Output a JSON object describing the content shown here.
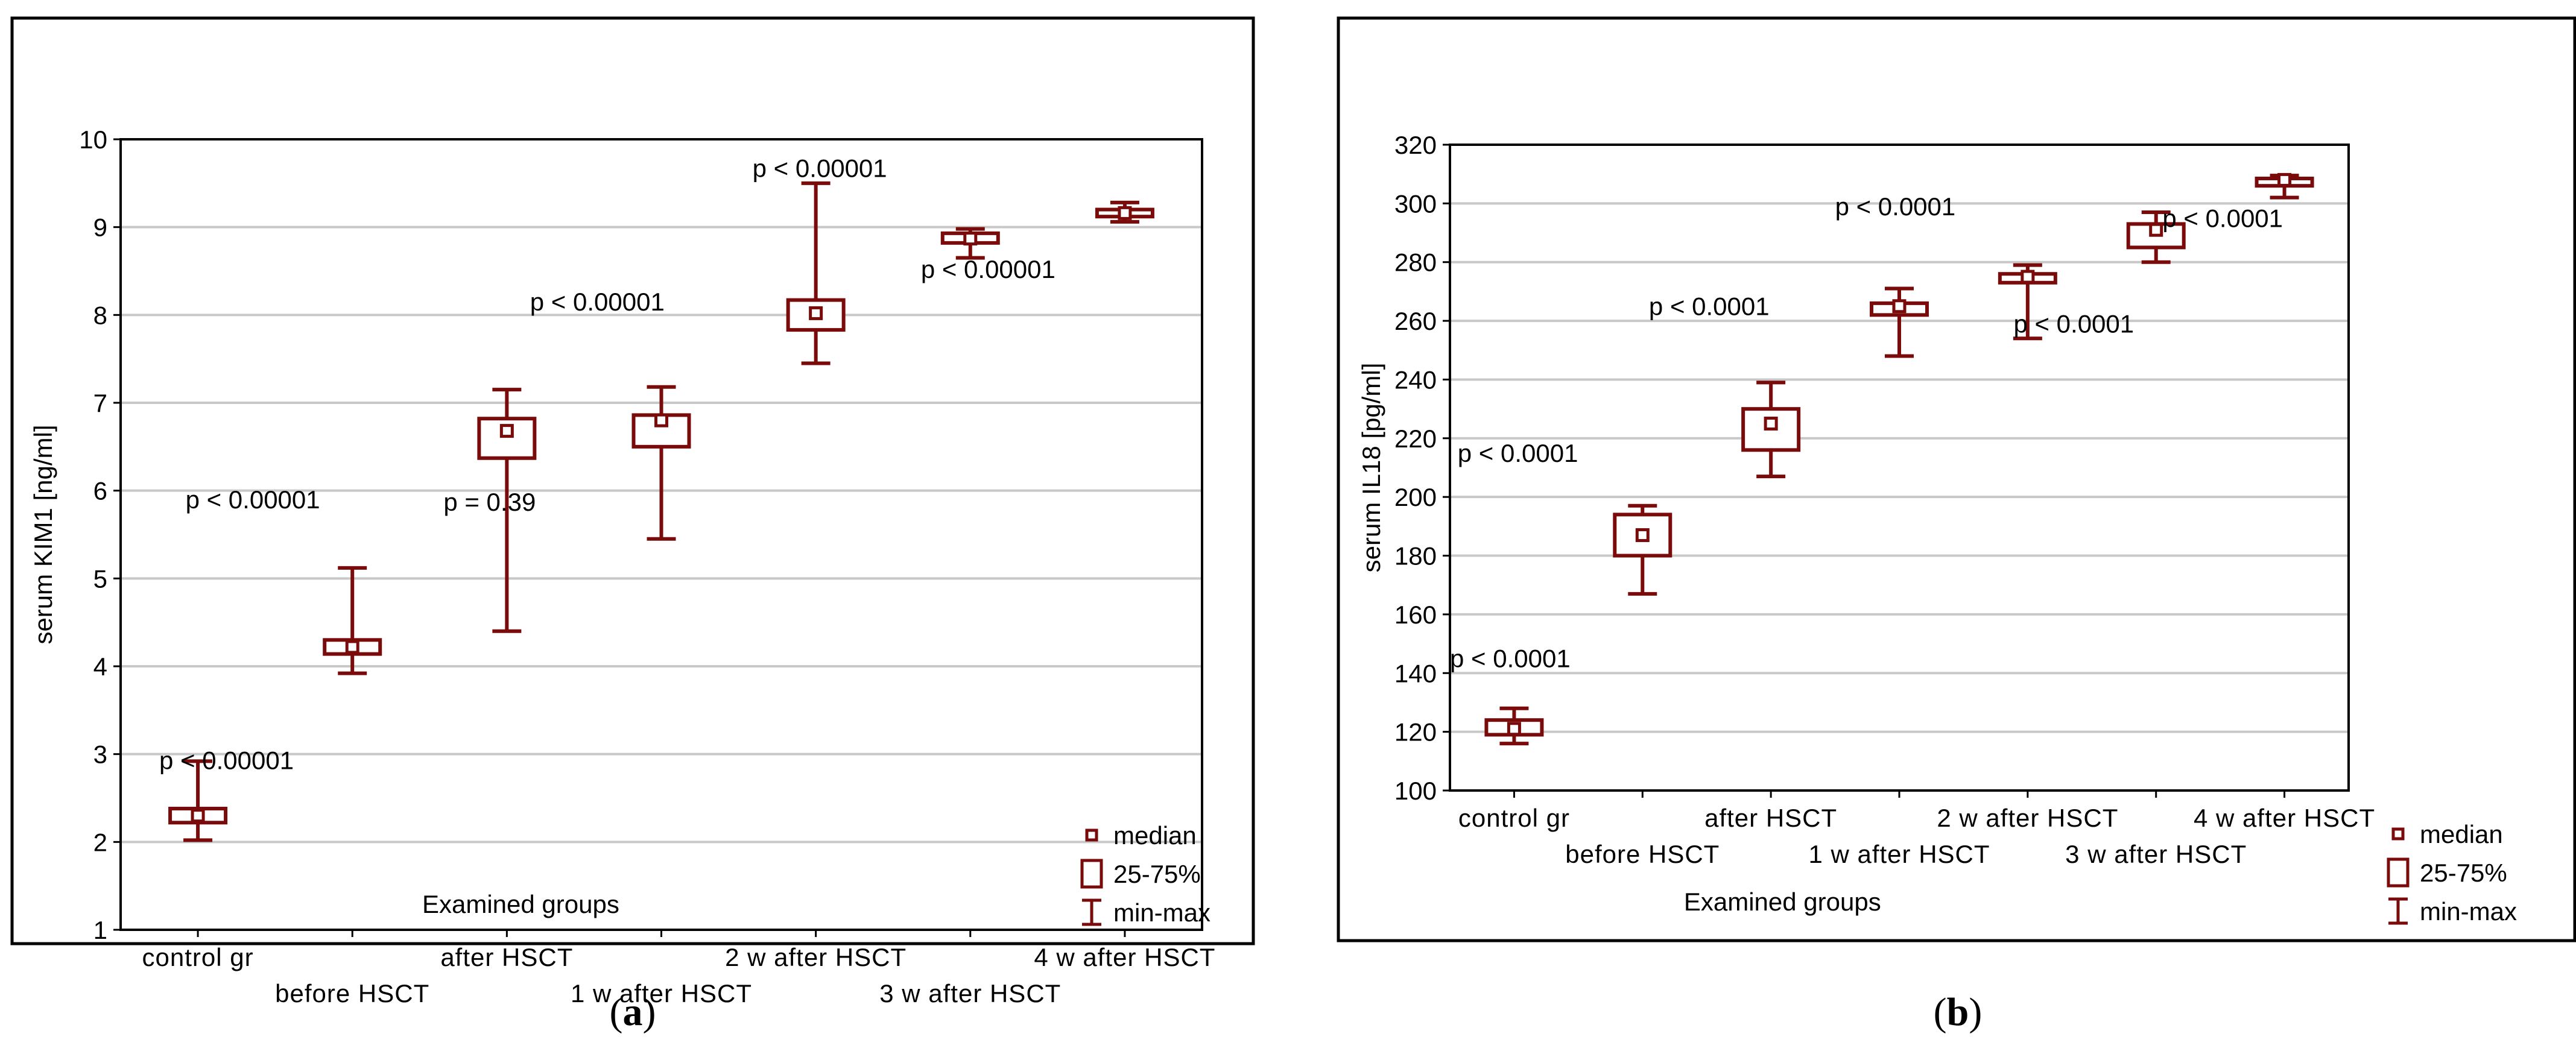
{
  "series_color": "#7a0b0b",
  "legend": {
    "median": "median",
    "box": "25-75%",
    "whisker": "min-max"
  },
  "panels": [
    {
      "caption_open": "(",
      "caption_letter": "a",
      "caption_close": ")"
    },
    {
      "caption_open": "(",
      "caption_letter": "b",
      "caption_close": ")"
    }
  ],
  "chart_data": [
    {
      "type": "box",
      "ylabel": "serum KIM1 [ng/ml]",
      "xlabel": "Examined groups",
      "ylim": [
        1,
        10
      ],
      "yticks": [
        1,
        2,
        3,
        4,
        5,
        6,
        7,
        8,
        9,
        10
      ],
      "grid": true,
      "legend_placement": "right-bottom",
      "categories": [
        "control gr",
        "before HSCT",
        "after HSCT",
        "1 w after HSCT",
        "2 w after HSCT",
        "3 w after HSCT",
        "4 w after HSCT"
      ],
      "boxes": [
        {
          "median": 2.3,
          "q1": 2.22,
          "q3": 2.38,
          "min": 2.02,
          "max": 2.92
        },
        {
          "median": 4.22,
          "q1": 4.14,
          "q3": 4.3,
          "min": 3.92,
          "max": 5.12
        },
        {
          "median": 6.68,
          "q1": 6.37,
          "q3": 6.82,
          "min": 4.4,
          "max": 7.15
        },
        {
          "median": 6.8,
          "q1": 6.5,
          "q3": 6.86,
          "min": 5.45,
          "max": 7.18
        },
        {
          "median": 8.02,
          "q1": 7.83,
          "q3": 8.17,
          "min": 7.45,
          "max": 9.5
        },
        {
          "median": 8.87,
          "q1": 8.82,
          "q3": 8.93,
          "min": 8.65,
          "max": 8.98
        },
        {
          "median": 9.16,
          "q1": 9.12,
          "q3": 9.2,
          "min": 9.06,
          "max": 9.28
        }
      ],
      "annotations": [
        {
          "text": "p < 0.00001",
          "x": 0.25,
          "y": 2.83
        },
        {
          "text": "p < 0.00001",
          "x": 0.42,
          "y": 5.8
        },
        {
          "text": "p = 0.39",
          "x": 2.09,
          "y": 5.77
        },
        {
          "text": "p < 0.00001",
          "x": 2.65,
          "y": 8.05
        },
        {
          "text": "p < 0.00001",
          "x": 4.09,
          "y": 9.57
        },
        {
          "text": "p < 0.00001",
          "x": 5.18,
          "y": 8.42
        }
      ]
    },
    {
      "type": "box",
      "ylabel": "serum IL18 [pg/ml]",
      "xlabel": "Examined groups",
      "ylim": [
        100,
        320
      ],
      "yticks": [
        100,
        120,
        140,
        160,
        180,
        200,
        220,
        240,
        260,
        280,
        300,
        320
      ],
      "grid": true,
      "legend_placement": "right-bottom",
      "categories": [
        "control gr",
        "before HSCT",
        "after HSCT",
        "1 w after HSCT",
        "2 w after HSCT",
        "3 w after HSCT",
        "4 w after HSCT"
      ],
      "boxes": [
        {
          "median": 121,
          "q1": 119,
          "q3": 124,
          "min": 116,
          "max": 128
        },
        {
          "median": 187,
          "q1": 180,
          "q3": 194,
          "min": 167,
          "max": 197
        },
        {
          "median": 225,
          "q1": 216,
          "q3": 230,
          "min": 207,
          "max": 239
        },
        {
          "median": 265,
          "q1": 262,
          "q3": 266,
          "min": 248,
          "max": 271
        },
        {
          "median": 275,
          "q1": 273,
          "q3": 276,
          "min": 254,
          "max": 279
        },
        {
          "median": 291,
          "q1": 285,
          "q3": 293,
          "min": 280,
          "max": 297
        },
        {
          "median": 308,
          "q1": 306,
          "q3": 308.5,
          "min": 302,
          "max": 309.5
        }
      ],
      "annotations": [
        {
          "text": "p < 0.0001",
          "x": 0.0,
          "y": 142
        },
        {
          "text": "p < 0.0001",
          "x": 0.06,
          "y": 212
        },
        {
          "text": "p < 0.0001",
          "x": 1.55,
          "y": 262
        },
        {
          "text": "p < 0.0001",
          "x": 3.0,
          "y": 296
        },
        {
          "text": "p < 0.0001",
          "x": 4.39,
          "y": 256
        },
        {
          "text": "p < 0.0001",
          "x": 5.55,
          "y": 292
        }
      ]
    }
  ]
}
